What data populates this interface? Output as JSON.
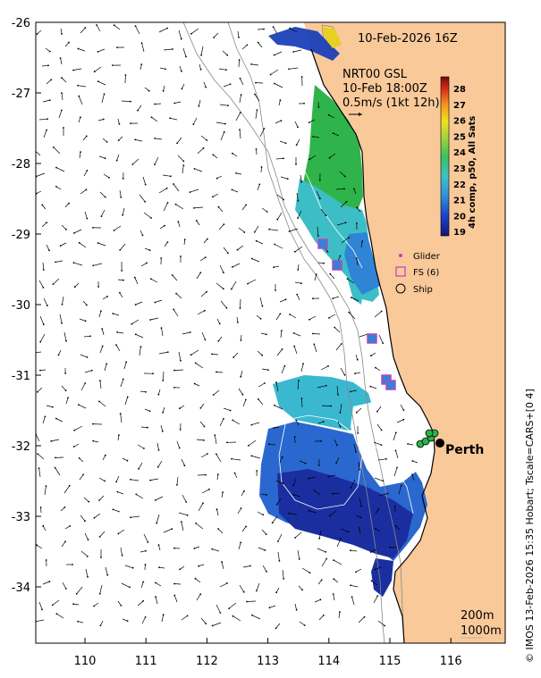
{
  "map": {
    "timestamp": "10-Feb-2026 16Z",
    "product_line1": "NRT00 GSL",
    "product_line2": "10-Feb 18:00Z",
    "scale_text": "0.5m/s (1kt 12h)",
    "city_label": "Perth",
    "depth_label_1": "200m",
    "depth_label_2": "1000m",
    "credit": "© IMOS 13-Feb-2026 15:35 Hobart; Tscale=CARS+[0 4]",
    "colorbar_title": "4h comp, p50, All Sats",
    "colorbar_ticks": [
      "28",
      "27",
      "26",
      "25",
      "24",
      "23",
      "22",
      "21",
      "20",
      "19"
    ],
    "legend": [
      {
        "label": "Glider",
        "symbol": "glider-dot-icon"
      },
      {
        "label": "FS (6)",
        "symbol": "magenta-square-icon"
      },
      {
        "label": "Ship",
        "symbol": "ship-circle-icon"
      }
    ],
    "x_ticks": [
      "110",
      "111",
      "112",
      "113",
      "114",
      "115",
      "116"
    ],
    "y_ticks": [
      "-26",
      "-27",
      "-28",
      "-29",
      "-30",
      "-31",
      "-32",
      "-33",
      "-34"
    ],
    "colors": {
      "land": "#f9c99a",
      "cold": "#1a2a9c",
      "mid": "#3fb9c9",
      "warm": "#2db34a",
      "hot": "#e8d020",
      "float": "#c040c0"
    }
  }
}
